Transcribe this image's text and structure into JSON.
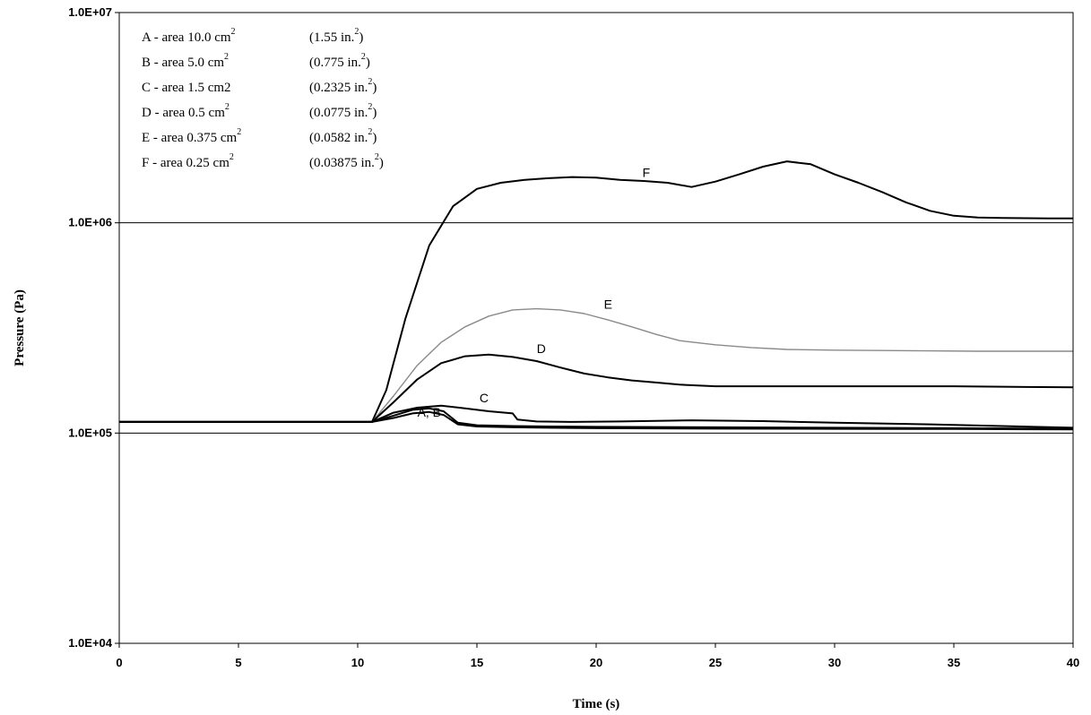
{
  "chart_data": {
    "type": "line",
    "xlabel": "Time (s)",
    "ylabel": "Pressure (Pa)",
    "xlim": [
      0,
      40
    ],
    "ylim": [
      10000,
      10000000
    ],
    "yscale": "log",
    "x_ticks": [
      "0",
      "5",
      "10",
      "15",
      "20",
      "25",
      "30",
      "35",
      "40"
    ],
    "y_ticks": [
      "1.0E+04",
      "1.0E+05",
      "1.0E+06",
      "1.0E+07"
    ],
    "reference_lines": [
      100000,
      1000000
    ],
    "legend_placement": "top-left",
    "legend": [
      {
        "key": "A",
        "prefix": "A - area 10.0 cm",
        "sup": "2",
        "paren_open": "(1.55 in.",
        "paren_sup": "2",
        "paren_close": ")"
      },
      {
        "key": "B",
        "prefix": "B - area  5.0 cm",
        "sup": "2",
        "paren_open": "(0.775 in.",
        "paren_sup": "2",
        "paren_close": ")"
      },
      {
        "key": "C",
        "prefix": "C - area  1.5 cm2",
        "sup": "",
        "paren_open": "(0.2325 in.",
        "paren_sup": "2",
        "paren_close": ")"
      },
      {
        "key": "D",
        "prefix": "D - area  0.5 cm",
        "sup": "2",
        "paren_open": "(0.0775 in.",
        "paren_sup": "2",
        "paren_close": ")"
      },
      {
        "key": "E",
        "prefix": "E - area  0.375 cm",
        "sup": "2",
        "paren_open": "(0.0582 in.",
        "paren_sup": "2",
        "paren_close": ")"
      },
      {
        "key": "F",
        "prefix": "F - area  0.25 cm",
        "sup": "2",
        "paren_open": "(0.03875 in.",
        "paren_sup": "2",
        "paren_close": ")"
      }
    ],
    "annotations": [
      {
        "text": "F",
        "x": 22.1,
        "y": 1650000
      },
      {
        "text": "E",
        "x": 20.5,
        "y": 390000
      },
      {
        "text": "D",
        "x": 17.7,
        "y": 240000
      },
      {
        "text": "C",
        "x": 15.3,
        "y": 140000
      },
      {
        "text": "A, B",
        "x": 13.0,
        "y": 120000
      }
    ],
    "series": [
      {
        "key": "F",
        "color": "#000000",
        "x": [
          0,
          10.6,
          11.2,
          12.0,
          13.0,
          14.0,
          15.0,
          16.0,
          17.0,
          18.0,
          19.0,
          20.0,
          21.0,
          22.0,
          23.0,
          24.0,
          25.0,
          26.0,
          27.0,
          28.0,
          29.0,
          30.0,
          31.0,
          32.0,
          33.0,
          34.0,
          35.0,
          36.0,
          37.0,
          38.0,
          39.0,
          40.0
        ],
        "y": [
          113000,
          113000,
          160000,
          350000,
          780000,
          1200000,
          1450000,
          1550000,
          1600000,
          1630000,
          1650000,
          1640000,
          1600000,
          1580000,
          1550000,
          1480000,
          1570000,
          1700000,
          1850000,
          1960000,
          1900000,
          1700000,
          1550000,
          1400000,
          1250000,
          1140000,
          1080000,
          1060000,
          1055000,
          1052000,
          1050000,
          1050000
        ]
      },
      {
        "key": "E",
        "color": "#8a8a8a",
        "x": [
          0,
          10.6,
          11.5,
          12.5,
          13.5,
          14.5,
          15.5,
          16.5,
          17.5,
          18.5,
          19.5,
          20.5,
          21.5,
          22.5,
          23.5,
          25.0,
          26.5,
          28.0,
          30.0,
          32.0,
          34.0,
          36.0,
          38.0,
          40.0
        ],
        "y": [
          113000,
          113000,
          150000,
          210000,
          270000,
          320000,
          360000,
          385000,
          390000,
          385000,
          370000,
          345000,
          320000,
          295000,
          275000,
          263000,
          255000,
          250000,
          248000,
          247000,
          246000,
          245000,
          245000,
          245000
        ]
      },
      {
        "key": "D",
        "color": "#000000",
        "x": [
          0,
          10.6,
          11.5,
          12.5,
          13.5,
          14.5,
          15.5,
          16.5,
          17.5,
          18.5,
          19.5,
          20.5,
          21.5,
          22.5,
          23.5,
          25.0,
          27.0,
          30.0,
          35.0,
          40.0
        ],
        "y": [
          113000,
          113000,
          140000,
          180000,
          215000,
          232000,
          236000,
          230000,
          220000,
          205000,
          192000,
          184000,
          178000,
          174000,
          170000,
          167000,
          167000,
          167000,
          167000,
          165000
        ]
      },
      {
        "key": "C",
        "color": "#000000",
        "x": [
          0,
          10.6,
          11.5,
          12.5,
          13.5,
          14.5,
          15.5,
          16.5,
          16.7,
          17.5,
          19.0,
          21.0,
          24.0,
          27.0,
          30.0,
          34.0,
          37.0,
          40.0
        ],
        "y": [
          113000,
          113000,
          125000,
          132000,
          135000,
          131000,
          127000,
          124000,
          116000,
          113500,
          113000,
          113500,
          115000,
          114000,
          112000,
          110000,
          108000,
          106000
        ]
      },
      {
        "key": "B",
        "color": "#000000",
        "x": [
          0,
          10.6,
          11.5,
          12.3,
          13.0,
          13.6,
          14.2,
          15.0,
          16.5,
          18.0,
          20.0,
          25.0,
          30.0,
          35.0,
          40.0
        ],
        "y": [
          113000,
          113000,
          121000,
          129000,
          131000,
          127000,
          112000,
          109000,
          108000,
          107500,
          107000,
          106500,
          106000,
          105500,
          105000
        ]
      },
      {
        "key": "A",
        "color": "#000000",
        "x": [
          0,
          10.6,
          11.5,
          12.3,
          13.0,
          13.6,
          14.2,
          15.0,
          16.5,
          18.0,
          20.0,
          25.0,
          30.0,
          35.0,
          40.0
        ],
        "y": [
          113000,
          113000,
          118000,
          124000,
          126000,
          122000,
          110000,
          107500,
          106500,
          106000,
          105500,
          105000,
          104800,
          104500,
          104000
        ]
      }
    ]
  }
}
